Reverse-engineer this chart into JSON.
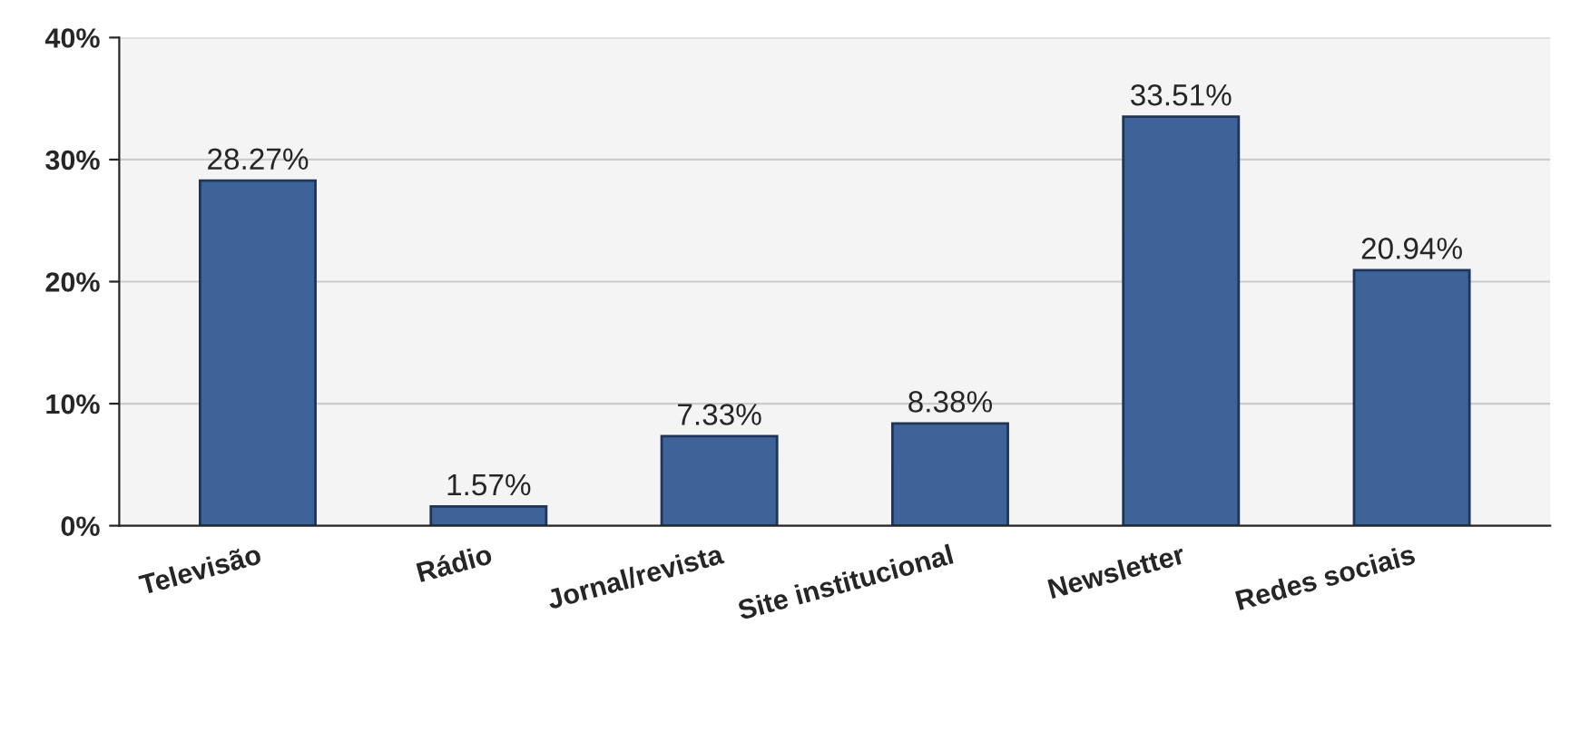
{
  "chart_data": {
    "type": "bar",
    "categories": [
      "Televisão",
      "Rádio",
      "Jornal/revista",
      "Site institucional",
      "Newsletter",
      "Redes sociais"
    ],
    "values": [
      28.27,
      1.57,
      7.33,
      8.38,
      33.51,
      20.94
    ],
    "value_labels": [
      "28.27%",
      "1.57%",
      "7.33%",
      "8.38%",
      "33.51%",
      "20.94%"
    ],
    "color": "#3d6399",
    "ylim": [
      0,
      40
    ],
    "yticks": [
      {
        "value": 0,
        "label": "0%"
      },
      {
        "value": 10,
        "label": "10%"
      },
      {
        "value": 20,
        "label": "20%"
      },
      {
        "value": 30,
        "label": "30%"
      },
      {
        "value": 40,
        "label": "40%"
      }
    ],
    "grid": "y"
  }
}
